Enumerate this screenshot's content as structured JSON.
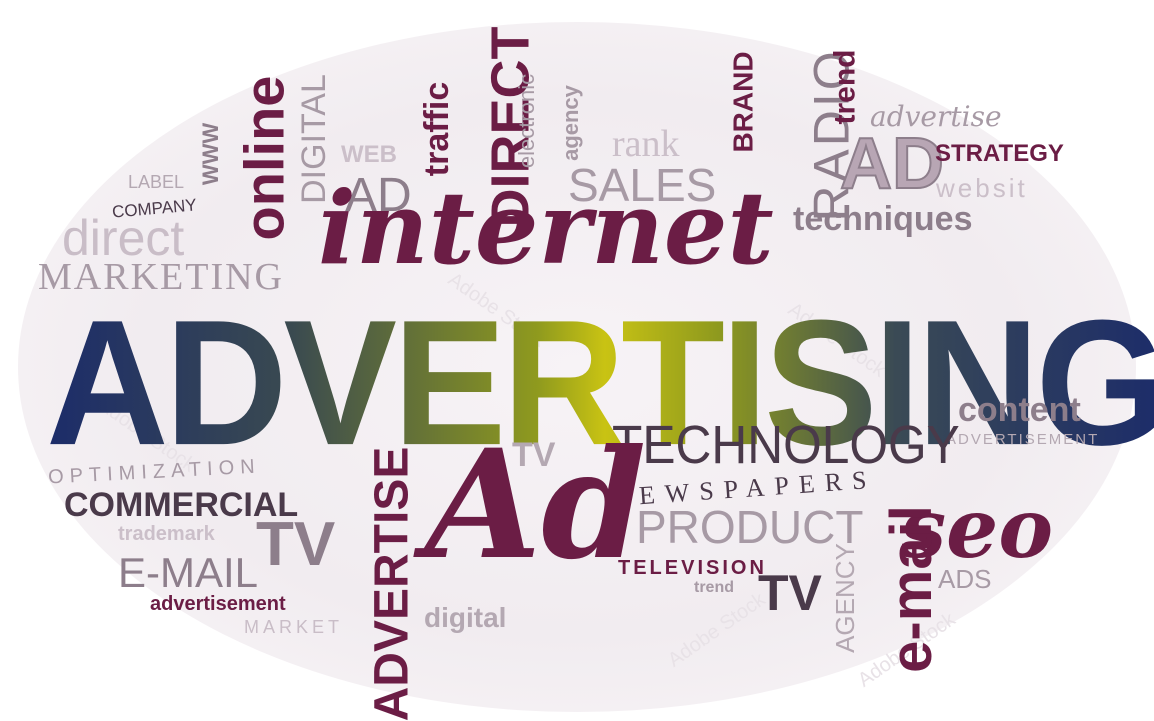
{
  "colors": {
    "maroon": "#6b1d45",
    "dark": "#4a3a4a",
    "gray": "#a79aa5",
    "light": "#c9bdc7",
    "navy": "#1c2c6a",
    "olive": "#c9c313"
  },
  "watermark": "Adobe Stock",
  "words": {
    "label": "LABEL",
    "www": "WWW",
    "online": "online",
    "digital_v": "DIGITAL",
    "web": "WEB",
    "traffic": "traffic",
    "direct_v": "DIRECT",
    "electronic": "electronic",
    "agency_v": "agency",
    "rank": "rank",
    "brand": "BRAND",
    "radio": "RADIO",
    "trend_v": "trend",
    "advertise_script": "advertise",
    "company": "COMPANY",
    "direct_thin": "direct",
    "ad_outline": "AD",
    "sales": "SALES",
    "ad_big": "AD",
    "strategy": "STRATEGY",
    "websit": "websit",
    "marketing": "MARKETING",
    "internet": "internet",
    "techniques": "techniques",
    "advertising": "ADVERTISING",
    "content": "content",
    "advertisement_caps": "ADVERTISEMENT",
    "technology": "TECHNOLOGY",
    "tv_small": "TV",
    "optimization": "OPTIMIZATION",
    "newspapers": "NEWSPAPERS",
    "commercial": "COMMERCIAL",
    "advertise_v": "ADVERTISE",
    "ad_script": "Ad",
    "seo": "seo",
    "trademark": "trademark",
    "tv_mid": "TV",
    "product": "PRODUCT",
    "email_caps": "E-MAIL",
    "television": "TELEVISION",
    "email_v": "e-mail",
    "agency_caps": "AGENCY",
    "ads": "ADS",
    "advertisement_bold": "advertisement",
    "trend_small": "trend",
    "tv_bottom": "TV",
    "market": "MARKET",
    "digital_bold": "digital"
  }
}
